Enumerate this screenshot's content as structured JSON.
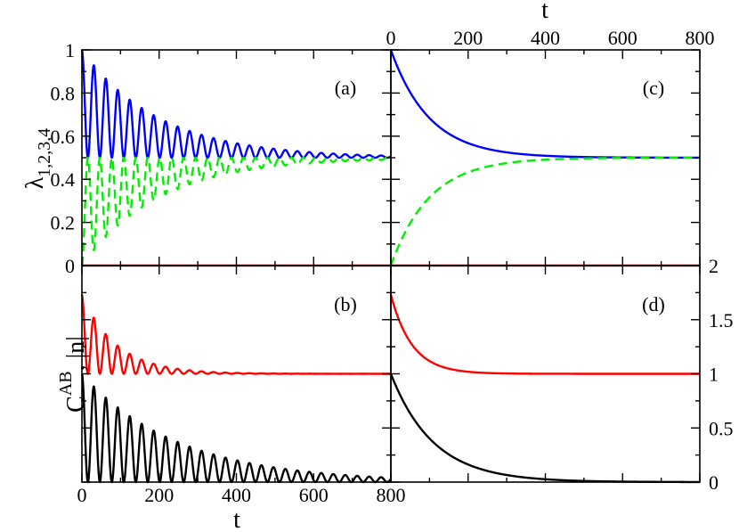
{
  "chart_data": [
    {
      "panel": "(a)",
      "type": "line",
      "xlim": [
        0,
        800
      ],
      "ylim": [
        0,
        1
      ],
      "x_ticks": [
        "0",
        "200",
        "400",
        "600",
        "800"
      ],
      "y_ticks": [
        "0",
        "0.2",
        "0.4",
        "0.6",
        "0.8",
        "1"
      ],
      "ylabel": "λ",
      "ylabel_subscript": "1,2,3,4",
      "series": [
        {
          "style": "solid",
          "color": "#0000ff",
          "envelope_start": 1.0,
          "envelope_end": 0.5,
          "oscillation_period": 31,
          "decay_time": 200
        },
        {
          "style": "dashed",
          "color": "#00ee00",
          "envelope_start": 0.0,
          "envelope_end": 0.5,
          "oscillation_period": 31,
          "decay_time": 200
        },
        {
          "style": "solid",
          "color": "#ff0000",
          "constant": 0.0
        },
        {
          "style": "dotted",
          "color": "#000000",
          "constant": 0.0
        }
      ]
    },
    {
      "panel": "(b)",
      "type": "line",
      "xlim": [
        0,
        800
      ],
      "ylim": [
        0,
        2
      ],
      "x_ticks": [
        "0",
        "200",
        "400",
        "600",
        "800"
      ],
      "xlabel": "t",
      "ylabel": "C",
      "ylabel_superscript": "AB",
      "ylabel_suffix": ", |n|",
      "series": [
        {
          "style": "solid",
          "color": "#ff0000",
          "envelope_start": 1.73,
          "envelope_end": 1.0,
          "oscillation_period": 31,
          "decay_time": 90
        },
        {
          "style": "solid",
          "color": "#000000",
          "envelope_start": 1.0,
          "envelope_end": 0.0,
          "oscillation_period": 31,
          "decay_time": 250
        }
      ]
    },
    {
      "panel": "(c)",
      "type": "line",
      "xlim": [
        0,
        800
      ],
      "ylim": [
        0,
        1
      ],
      "x_ticks": [
        "0",
        "200",
        "400",
        "600",
        "800"
      ],
      "xlabel": "t",
      "series": [
        {
          "style": "solid",
          "color": "#0000ff",
          "start": 1.0,
          "end": 0.5,
          "decay_time": 100
        },
        {
          "style": "dashed",
          "color": "#00ee00",
          "start": 0.0,
          "end": 0.5,
          "decay_time": 100
        },
        {
          "style": "solid",
          "color": "#ff0000",
          "constant": 0.0
        },
        {
          "style": "dotted",
          "color": "#000000",
          "constant": 0.0
        }
      ]
    },
    {
      "panel": "(d)",
      "type": "line",
      "xlim": [
        0,
        800
      ],
      "ylim": [
        0,
        2
      ],
      "y_ticks": [
        "0",
        "0.5",
        "1",
        "1.5",
        "2"
      ],
      "series": [
        {
          "style": "solid",
          "color": "#ff0000",
          "start": 1.73,
          "end": 1.0,
          "decay_time": 55
        },
        {
          "style": "solid",
          "color": "#000000",
          "start": 1.0,
          "end": 0.0,
          "decay_time": 110
        }
      ]
    }
  ]
}
